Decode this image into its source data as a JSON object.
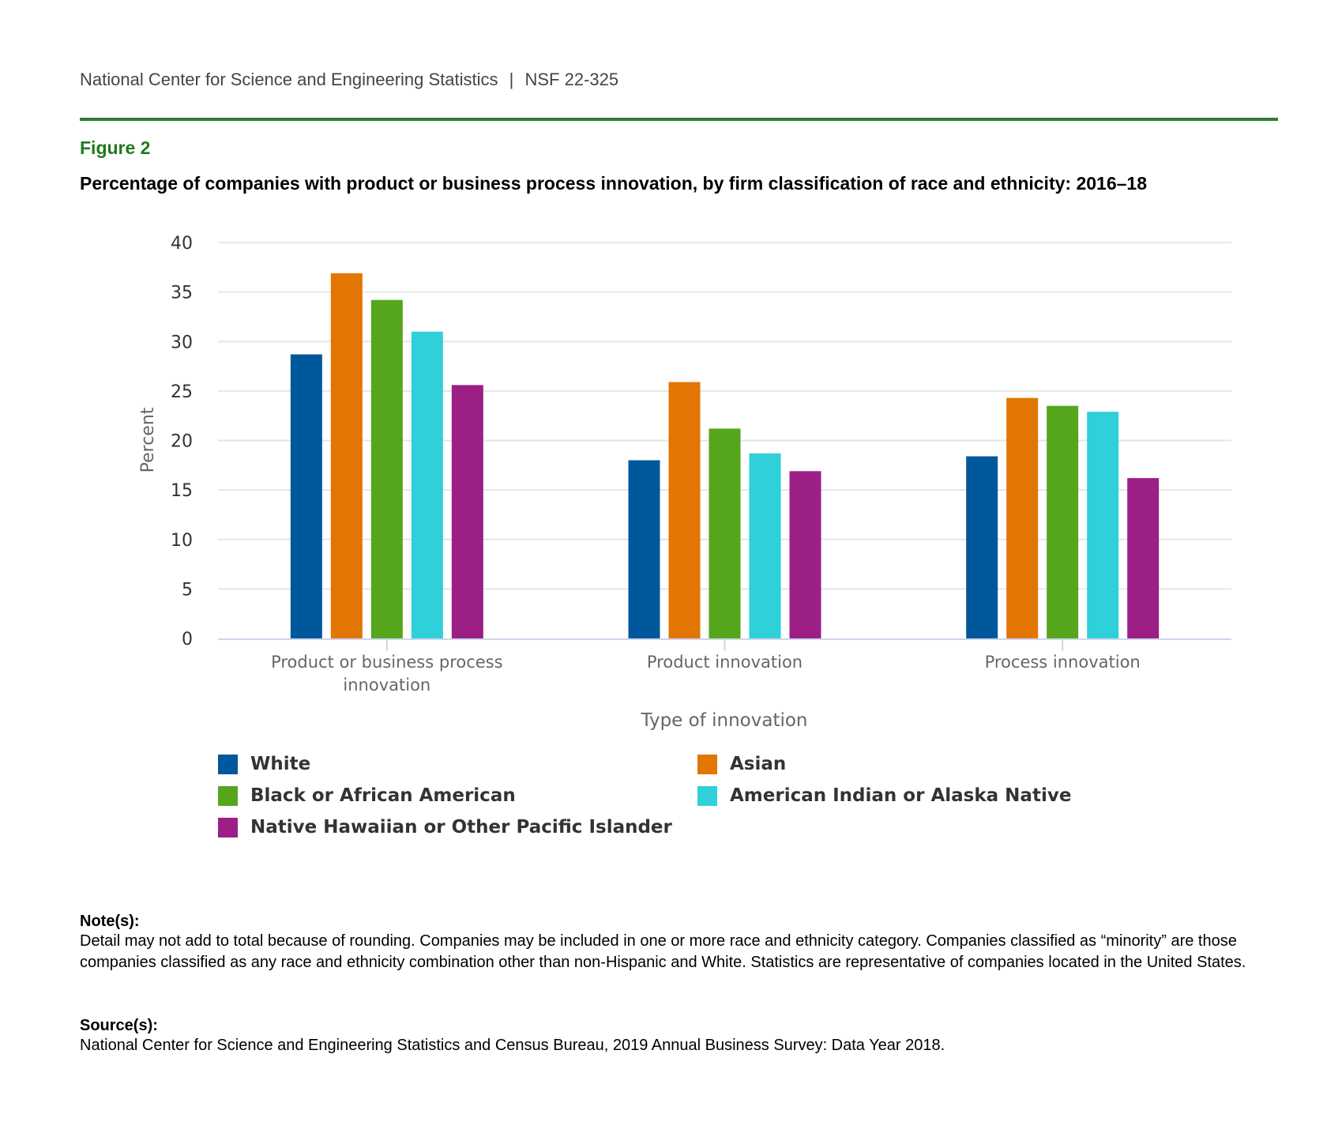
{
  "header": {
    "org": "National Center for Science and Engineering Statistics",
    "sep": "|",
    "report": "NSF 22-325"
  },
  "figure_label": "Figure 2",
  "chart_data": {
    "type": "bar",
    "title": "Percentage of companies with product or business process innovation, by firm classification of race and ethnicity: 2016–18",
    "xlabel": "Type of innovation",
    "ylabel": "Percent",
    "ylim": [
      0,
      40
    ],
    "yticks": [
      "0",
      "5",
      "10",
      "15",
      "20",
      "25",
      "30",
      "35",
      "40"
    ],
    "grid": true,
    "legend_position": "bottom",
    "categories": [
      [
        "Product or business process",
        "innovation"
      ],
      [
        "Product innovation"
      ],
      [
        "Process innovation"
      ]
    ],
    "series": [
      {
        "name": "White",
        "color": "#00589c",
        "values": [
          28.7,
          18.0,
          18.4
        ]
      },
      {
        "name": "Asian",
        "color": "#e37503",
        "values": [
          36.9,
          25.9,
          24.3
        ]
      },
      {
        "name": "Black or African American",
        "color": "#55a61c",
        "values": [
          34.2,
          21.2,
          23.5
        ]
      },
      {
        "name": "American Indian or Alaska Native",
        "color": "#2fd0d9",
        "values": [
          31.0,
          18.7,
          22.9
        ]
      },
      {
        "name": "Native Hawaiian or Other Pacific Islander",
        "color": "#9c1f86",
        "values": [
          25.6,
          16.9,
          16.2
        ]
      }
    ]
  },
  "notes": {
    "label": "Note(s):",
    "text": "Detail may not add to total because of rounding. Companies may be included in one or more race and ethnicity category. Companies classified as “minority” are those companies classified as any race and ethnicity combination other than non-Hispanic and White. Statistics are representative of companies located in the United States."
  },
  "source": {
    "label": "Source(s):",
    "text": "National Center for Science and Engineering Statistics and Census Bureau, 2019 Annual Business Survey: Data Year 2018."
  }
}
